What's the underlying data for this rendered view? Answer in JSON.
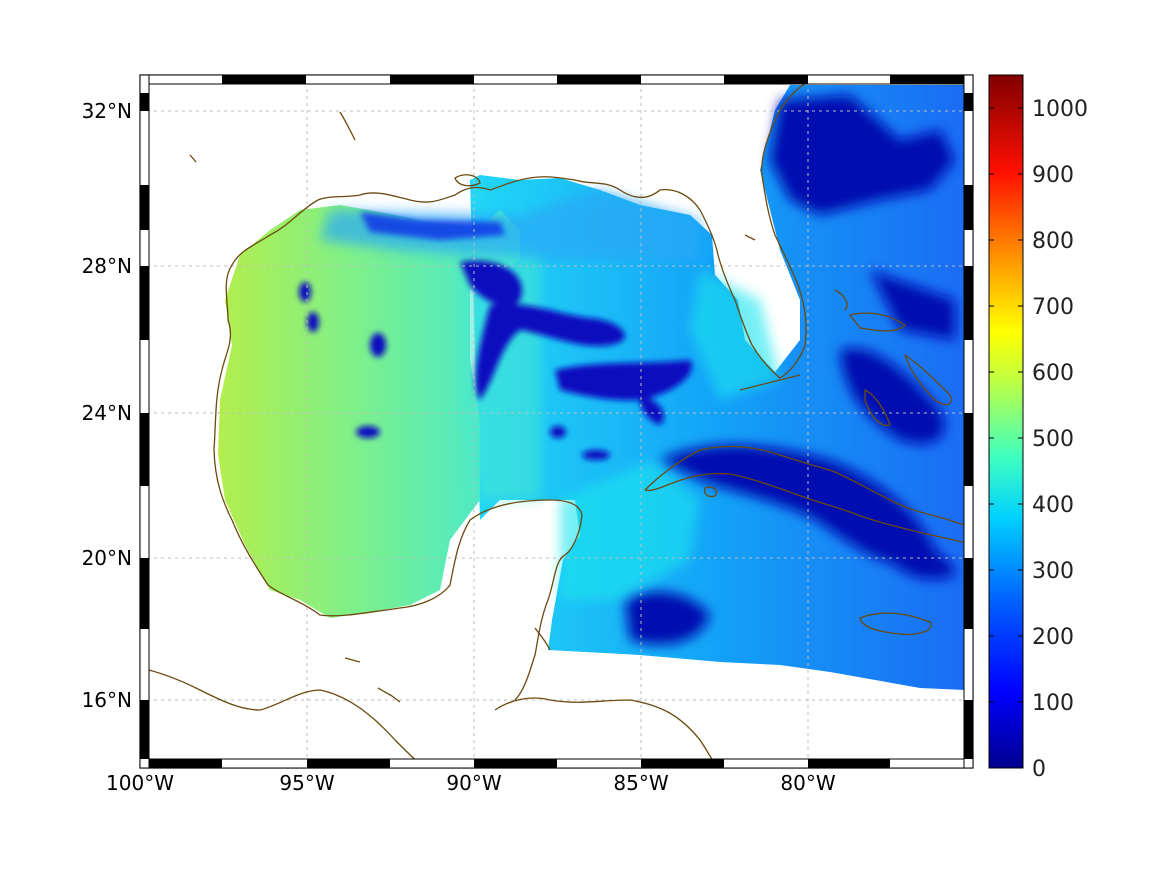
{
  "map": {
    "lon_labels": [
      "100°W",
      "95°W",
      "90°W",
      "85°W",
      "80°W"
    ],
    "lat_labels": [
      "32°N",
      "28°N",
      "24°N",
      "20°N",
      "16°N"
    ],
    "colorbar": {
      "ticks": [
        "0",
        "100",
        "200",
        "300",
        "400",
        "500",
        "600",
        "700",
        "800",
        "900",
        "1000"
      ],
      "range": [
        0,
        1050
      ],
      "colormap": "jet",
      "colors": [
        "#00008f",
        "#0000ff",
        "#0080ff",
        "#00ffff",
        "#80ff80",
        "#ffff00",
        "#ff8000",
        "#ff0000",
        "#800000"
      ]
    },
    "coastline_color": "#6b4a10"
  }
}
